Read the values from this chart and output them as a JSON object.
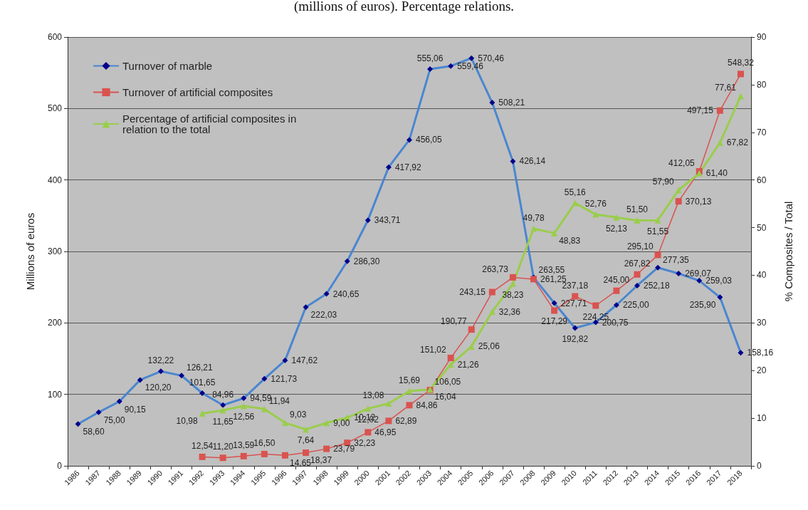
{
  "chart_data": {
    "type": "line",
    "title": "(millions of euros). Percentage relations.",
    "ylabel": "Millions of euros",
    "y2label": "% Composites / Total",
    "categories": [
      "1986",
      "1987",
      "1988",
      "1989",
      "1990",
      "1991",
      "1992",
      "1993",
      "1994",
      "1995",
      "1996",
      "1997",
      "1998",
      "1999",
      "2000",
      "2001",
      "2002",
      "2003",
      "2004",
      "2005",
      "2006",
      "2007",
      "2008",
      "2009",
      "2010",
      "2011",
      "2012",
      "2013",
      "2014",
      "2015",
      "2016",
      "2017",
      "2018"
    ],
    "series": [
      {
        "name": "Turnover of marble",
        "color": "#4a86d0",
        "marker": "diamond",
        "value_labels": [
          "58,60",
          "75,00",
          "90,15",
          "120,20",
          "132,22",
          "126,21",
          "101,65",
          "84,96",
          "94,59",
          "121,73",
          "147,62",
          "222,03",
          "240,65",
          "286,30",
          "343,71",
          "417,92",
          "456,05",
          "555,06",
          "559,46",
          "570,46",
          "508,21",
          "426,14",
          "263,55",
          "227,71",
          "192,82",
          "200,75",
          "225,00",
          "252,18",
          "277,35",
          "269,07",
          "259,03",
          "235,90",
          "158,16"
        ],
        "values": [
          58.6,
          75.0,
          90.15,
          120.2,
          132.22,
          126.21,
          101.65,
          84.96,
          94.59,
          121.73,
          147.62,
          222.03,
          240.65,
          286.3,
          343.71,
          417.92,
          456.05,
          555.06,
          559.46,
          570.46,
          508.21,
          426.14,
          263.55,
          227.71,
          192.82,
          200.75,
          225.0,
          252.18,
          277.35,
          269.07,
          259.03,
          235.9,
          158.16
        ]
      },
      {
        "name": "Turnover of artificial composites",
        "color": "#d9534f",
        "marker": "square",
        "value_labels": [
          null,
          null,
          null,
          null,
          null,
          null,
          "12,54",
          "11,20",
          "13,59",
          "16,50",
          "14,65",
          "18,37",
          "23,79",
          "32,23",
          "46,95",
          "62,89",
          "84,86",
          "106,05",
          "151,02",
          "190,77",
          "243,15",
          "263,73",
          "261,25",
          "217,29",
          "237,18",
          "224,25",
          "245,00",
          "267,82",
          "295,10",
          "370,13",
          "412,05",
          "497,15",
          "548,32"
        ],
        "values": [
          null,
          null,
          null,
          null,
          null,
          null,
          12.54,
          11.2,
          13.59,
          16.5,
          14.65,
          18.37,
          23.79,
          32.23,
          46.95,
          62.89,
          84.86,
          106.05,
          151.02,
          190.77,
          243.15,
          263.73,
          261.25,
          217.29,
          237.18,
          224.25,
          245.0,
          267.82,
          295.1,
          370.13,
          412.05,
          497.15,
          548.32
        ]
      },
      {
        "name": "Percentage of artificial composites in relation to the total",
        "color": "#9acd4c",
        "marker": "triangle",
        "axis": "y2",
        "value_labels": [
          null,
          null,
          null,
          null,
          null,
          null,
          "10,98",
          "11,65",
          "12,56",
          "11,94",
          "9,03",
          "7,64",
          "9,00",
          "10,12",
          "12,02",
          "13,08",
          "15,69",
          "16,04",
          "21,26",
          "25,06",
          "32,36",
          "38,23",
          "49,78",
          "48,83",
          "55,16",
          "52,76",
          "52,13",
          "51,50",
          "51,55",
          "57,90",
          "61,40",
          "67,82",
          "77,61"
        ],
        "values": [
          null,
          null,
          null,
          null,
          null,
          null,
          10.98,
          11.65,
          12.56,
          11.94,
          9.03,
          7.64,
          9.0,
          10.12,
          12.02,
          13.08,
          15.69,
          16.04,
          21.26,
          25.06,
          32.36,
          38.23,
          49.78,
          48.83,
          55.16,
          52.76,
          52.13,
          51.5,
          51.55,
          57.9,
          61.4,
          67.82,
          77.61
        ]
      }
    ],
    "ylim": [
      0,
      600
    ],
    "yticks": [
      0,
      100,
      200,
      300,
      400,
      500,
      600
    ],
    "y2lim": [
      0,
      90
    ],
    "y2ticks": [
      0,
      10,
      20,
      30,
      40,
      50,
      60,
      70,
      80,
      90
    ],
    "grid": "y",
    "legend": "top left"
  }
}
